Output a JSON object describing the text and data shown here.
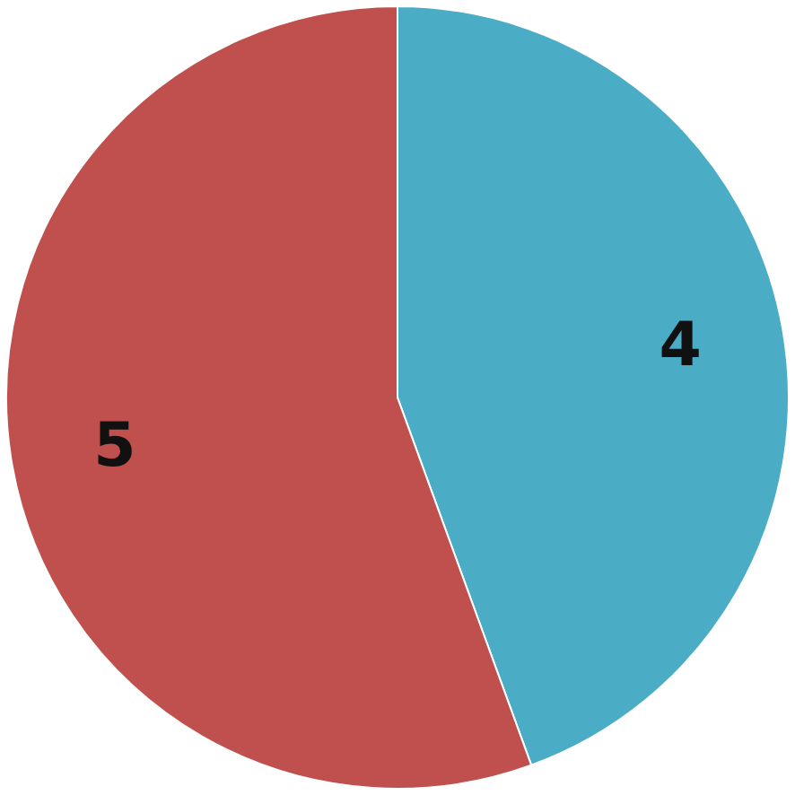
{
  "chart_data": {
    "type": "pie",
    "categories": [
      null,
      null
    ],
    "values": [
      4,
      5
    ],
    "colors": [
      "#4bacc6",
      "#c0504d"
    ],
    "data_labels": true,
    "legend": false
  }
}
